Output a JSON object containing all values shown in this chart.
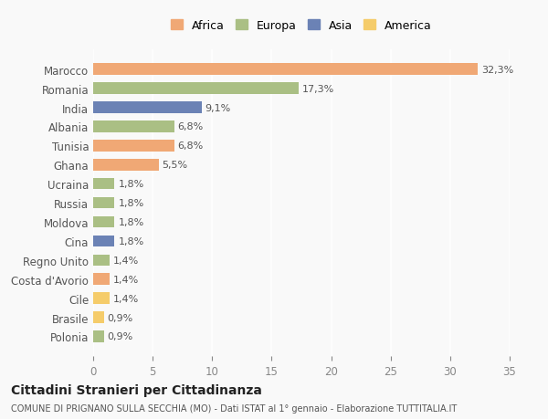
{
  "countries": [
    "Marocco",
    "Romania",
    "India",
    "Albania",
    "Tunisia",
    "Ghana",
    "Ucraina",
    "Russia",
    "Moldova",
    "Cina",
    "Regno Unito",
    "Costa d'Avorio",
    "Cile",
    "Brasile",
    "Polonia"
  ],
  "values": [
    32.3,
    17.3,
    9.1,
    6.8,
    6.8,
    5.5,
    1.8,
    1.8,
    1.8,
    1.8,
    1.4,
    1.4,
    1.4,
    0.9,
    0.9
  ],
  "labels": [
    "32,3%",
    "17,3%",
    "9,1%",
    "6,8%",
    "6,8%",
    "5,5%",
    "1,8%",
    "1,8%",
    "1,8%",
    "1,8%",
    "1,4%",
    "1,4%",
    "1,4%",
    "0,9%",
    "0,9%"
  ],
  "continents": [
    "Africa",
    "Europa",
    "Asia",
    "Europa",
    "Africa",
    "Africa",
    "Europa",
    "Europa",
    "Europa",
    "Asia",
    "Europa",
    "Africa",
    "America",
    "America",
    "Europa"
  ],
  "colors": {
    "Africa": "#F0A875",
    "Europa": "#AABF84",
    "Asia": "#6B82B5",
    "America": "#F5CC6A"
  },
  "legend_order": [
    "Africa",
    "Europa",
    "Asia",
    "America"
  ],
  "title": "Cittadini Stranieri per Cittadinanza",
  "subtitle": "COMUNE DI PRIGNANO SULLA SECCHIA (MO) - Dati ISTAT al 1° gennaio - Elaborazione TUTTITALIA.IT",
  "xlim": [
    0,
    35
  ],
  "xticks": [
    0,
    5,
    10,
    15,
    20,
    25,
    30,
    35
  ],
  "background_color": "#f9f9f9",
  "bar_height": 0.6
}
